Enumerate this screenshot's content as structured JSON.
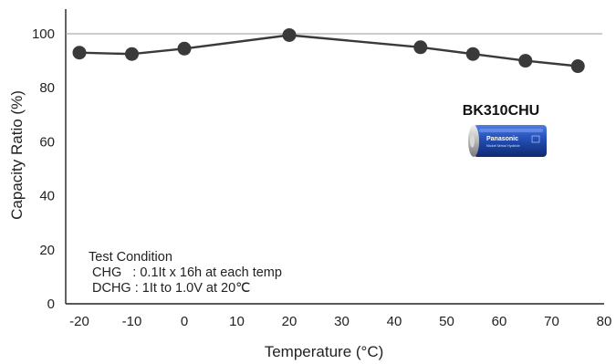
{
  "chart_data": {
    "type": "line",
    "xlabel": "Temperature (°C)",
    "ylabel": "Capacity Ratio (%)",
    "xlim": [
      -25,
      80
    ],
    "ylim": [
      0,
      110
    ],
    "xticks": [
      "-20",
      "-10",
      "0",
      "10",
      "20",
      "30",
      "40",
      "50",
      "60",
      "70",
      "80"
    ],
    "yticks": [
      "0",
      "20",
      "40",
      "60",
      "80",
      "100"
    ],
    "reference_line_y": 100,
    "grid": false,
    "series": [
      {
        "color": "#3a3a3a",
        "points": [
          {
            "x": -20,
            "y": 93
          },
          {
            "x": -10,
            "y": 92.5
          },
          {
            "x": 0,
            "y": 94.5
          },
          {
            "x": 20,
            "y": 99.5
          },
          {
            "x": 45,
            "y": 95
          },
          {
            "x": 55,
            "y": 92.5
          },
          {
            "x": 65,
            "y": 90
          },
          {
            "x": 75,
            "y": 88
          }
        ]
      }
    ],
    "product_label": "BK310CHU",
    "battery_brand": "Panasonic",
    "battery_subtitle": "Nickel Metal Hydride",
    "annotation": {
      "title": "Test Condition",
      "lines": [
        "CHG   : 0.1It x 16h at each temp",
        "DCHG : 1It to 1.0V at 20℃"
      ]
    }
  }
}
